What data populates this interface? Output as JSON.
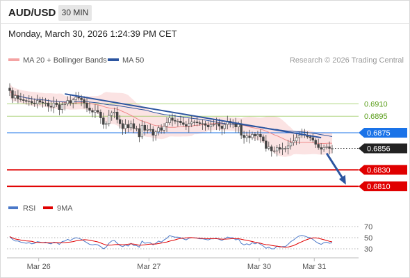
{
  "header": {
    "symbol": "AUD/USD",
    "timeframe": "30 MIN",
    "datetime": "Monday, March 30, 2026 1:24:39 PM CET"
  },
  "chart_data": {
    "type": "candlestick",
    "legend": [
      {
        "name": "MA 20 + Bollinger Bands",
        "color": "#f4a3a3"
      },
      {
        "name": "MA 50",
        "color": "#2c55a0"
      }
    ],
    "credit": "Research © 2026 Trading Central",
    "price_axis": {
      "min": 0.68,
      "max": 0.696
    },
    "levels": [
      {
        "value": 0.691,
        "label": "0.6910",
        "type": "resistance-green",
        "color": "#8bc34a"
      },
      {
        "value": 0.6895,
        "label": "0.6895",
        "type": "resistance-green",
        "color": "#8bc34a"
      },
      {
        "value": 0.6875,
        "label": "0.6875",
        "type": "pivot",
        "color": "#1a73e8"
      },
      {
        "value": 0.683,
        "label": "0.6830",
        "type": "support",
        "color": "#e00000"
      },
      {
        "value": 0.681,
        "label": "0.6810",
        "type": "support",
        "color": "#e00000"
      }
    ],
    "current_price": {
      "value": 0.6856,
      "label": "0.6856"
    },
    "trendline": {
      "start": {
        "bar": 20,
        "price": 0.6922
      },
      "end": {
        "bar": 113,
        "price": 0.6869
      }
    },
    "forecast_arrow": {
      "from": {
        "bar": 115,
        "price": 0.685
      },
      "to": {
        "bar": 122,
        "price": 0.6812
      }
    },
    "close_series": [
      0.6926,
      0.6917,
      0.692,
      0.6916,
      0.6915,
      0.6914,
      0.6913,
      0.6913,
      0.6911,
      0.691,
      0.6914,
      0.6912,
      0.6911,
      0.6911,
      0.6907,
      0.6906,
      0.6911,
      0.6909,
      0.6903,
      0.6909,
      0.691,
      0.6914,
      0.6911,
      0.6915,
      0.6918,
      0.6917,
      0.6915,
      0.6911,
      0.6905,
      0.6902,
      0.69,
      0.6902,
      0.69,
      0.6893,
      0.6885,
      0.6886,
      0.6896,
      0.6899,
      0.69,
      0.6891,
      0.6886,
      0.688,
      0.6885,
      0.6881,
      0.6886,
      0.688,
      0.688,
      0.687,
      0.6884,
      0.6878,
      0.6879,
      0.6879,
      0.6872,
      0.6876,
      0.6881,
      0.6878,
      0.6883,
      0.6887,
      0.6893,
      0.689,
      0.6889,
      0.6889,
      0.6887,
      0.6885,
      0.6883,
      0.6886,
      0.6888,
      0.6888,
      0.6887,
      0.6886,
      0.6886,
      0.6884,
      0.6882,
      0.6885,
      0.6885,
      0.6886,
      0.6883,
      0.688,
      0.6885,
      0.6889,
      0.6887,
      0.6887,
      0.6882,
      0.6885,
      0.6872,
      0.6869,
      0.6871,
      0.6869,
      0.6873,
      0.6871,
      0.6873,
      0.687,
      0.6865,
      0.6856,
      0.6858,
      0.6853,
      0.6853,
      0.6857,
      0.6855,
      0.6856,
      0.6856,
      0.6859,
      0.6863,
      0.6865,
      0.6869,
      0.6872,
      0.6873,
      0.6872,
      0.687,
      0.6869,
      0.6866,
      0.6861,
      0.6857,
      0.6855,
      0.6857,
      0.6858,
      0.6856,
      0.6856
    ],
    "x_axis": {
      "labels": [
        {
          "label": "Mar 26",
          "bar": 9
        },
        {
          "label": "Mar 27",
          "bar": 49
        },
        {
          "label": "Mar 30",
          "bar": 89
        },
        {
          "label": "Mar 31",
          "bar": 109
        }
      ]
    },
    "rsi": {
      "legend": [
        {
          "name": "RSI",
          "color": "#4a78c8"
        },
        {
          "name": "9MA",
          "color": "#e00000"
        }
      ],
      "levels": [
        70,
        50,
        30
      ],
      "range": [
        20,
        80
      ],
      "values": [
        52,
        47,
        44,
        44,
        42,
        41,
        40,
        41,
        39,
        40,
        43,
        42,
        41,
        42,
        40,
        39,
        42,
        41,
        38,
        43,
        44,
        47,
        45,
        48,
        50,
        49,
        47,
        44,
        41,
        38,
        37,
        38,
        37,
        34,
        30,
        33,
        40,
        44,
        45,
        40,
        36,
        34,
        37,
        35,
        40,
        36,
        36,
        33,
        44,
        40,
        41,
        41,
        37,
        40,
        44,
        42,
        46,
        49,
        54,
        52,
        51,
        51,
        50,
        48,
        46,
        49,
        50,
        50,
        49,
        48,
        48,
        47,
        46,
        48,
        48,
        49,
        47,
        45,
        48,
        51,
        50,
        50,
        46,
        48,
        40,
        37,
        39,
        37,
        41,
        39,
        41,
        38,
        35,
        31,
        33,
        30,
        30,
        35,
        33,
        34,
        34,
        38,
        43,
        46,
        50,
        53,
        54,
        53,
        51,
        50,
        47,
        43,
        40,
        38,
        41,
        42,
        40,
        41
      ]
    }
  }
}
